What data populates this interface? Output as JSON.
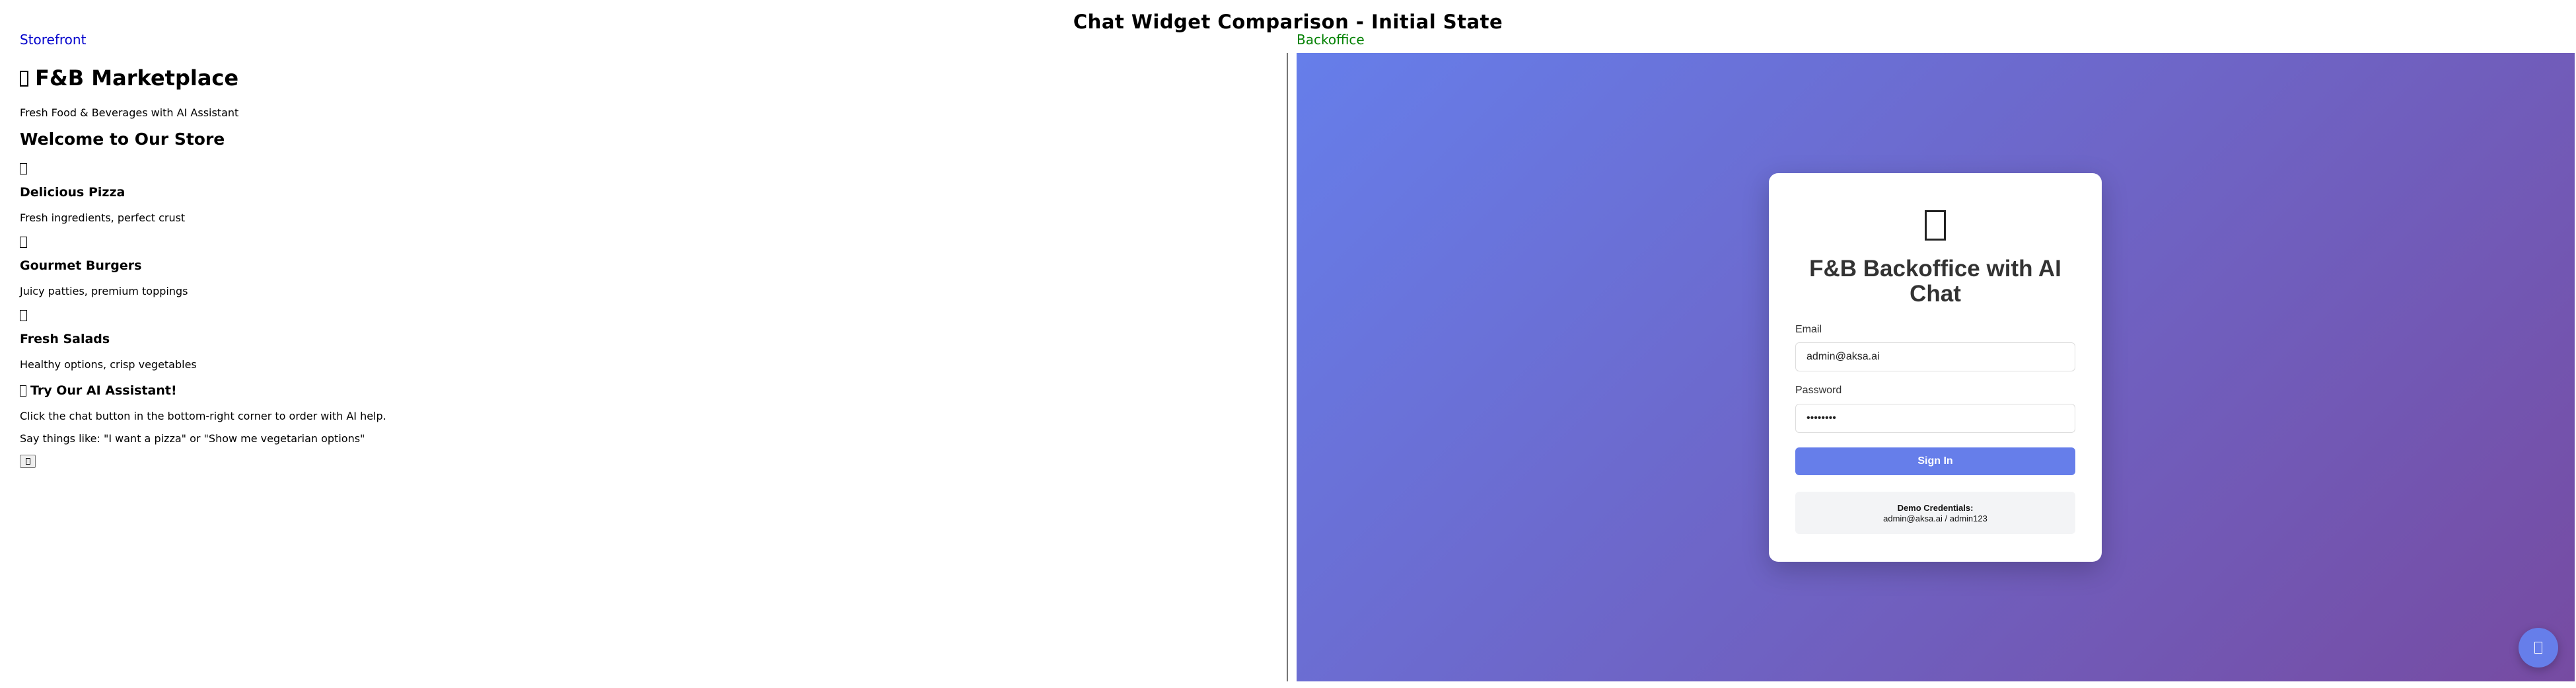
{
  "page": {
    "title": "Chat Widget Comparison - Initial State"
  },
  "labels": {
    "storefront": "Storefront",
    "backoffice": "Backoffice"
  },
  "storefront": {
    "heading": "F&B Marketplace",
    "tagline": "Fresh Food & Beverages with AI Assistant",
    "welcome": "Welcome to Our Store",
    "products": [
      {
        "icon": "pizza-icon",
        "name": "Delicious Pizza",
        "desc": "Fresh ingredients, perfect crust"
      },
      {
        "icon": "burger-icon",
        "name": "Gourmet Burgers",
        "desc": "Juicy patties, premium toppings"
      },
      {
        "icon": "salad-icon",
        "name": "Fresh Salads",
        "desc": "Healthy options, crisp vegetables"
      }
    ],
    "promo": {
      "title": "Try Our AI Assistant!",
      "line1": "Click the chat button in the bottom-right corner to order with AI help.",
      "line2": "Say things like: \"I want a pizza\" or \"Show me vegetarian options\""
    }
  },
  "backoffice": {
    "title": "F&B Backoffice with AI Chat",
    "email_label": "Email",
    "email_value": "admin@aksa.ai",
    "password_label": "Password",
    "password_value": "admin123",
    "signin_label": "Sign In",
    "demo_title": "Demo Credentials:",
    "demo_text": "admin@aksa.ai / admin123"
  },
  "colors": {
    "accent": "#667eea",
    "gradient_start": "#667eea",
    "gradient_end": "#764ba2",
    "storefront_label": "#0000cc",
    "backoffice_label": "#008000"
  }
}
